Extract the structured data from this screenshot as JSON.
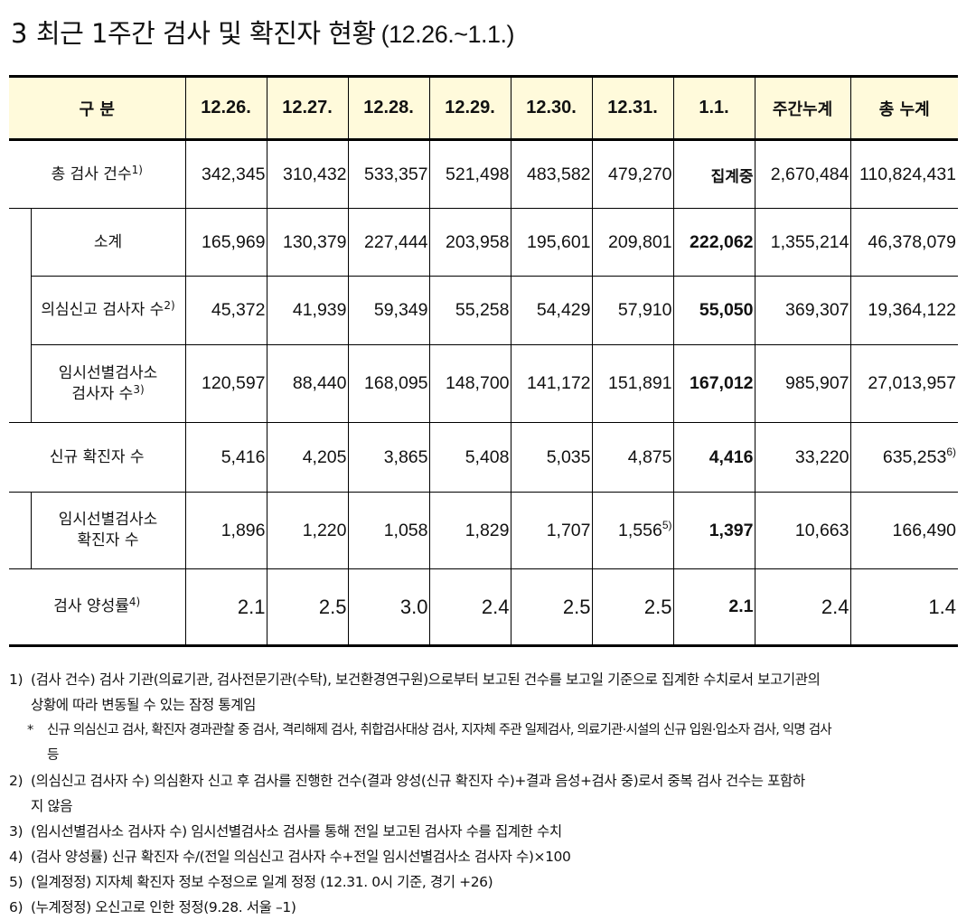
{
  "title": {
    "number": "3",
    "text": "최근 1주간 검사 및 확진자 현황",
    "period": "(12.26.~1.1.)"
  },
  "table": {
    "header": {
      "label": "구 분",
      "dates": [
        "12.26.",
        "12.27.",
        "12.28.",
        "12.29.",
        "12.30.",
        "12.31.",
        "1.1."
      ],
      "weekly_total": "주간누계",
      "grand_total": "총 누계"
    },
    "rows": [
      {
        "label": "총 검사 건수",
        "sup": "1)",
        "values": [
          "342,345",
          "310,432",
          "533,357",
          "521,498",
          "483,582",
          "479,270"
        ],
        "latest": "집계중",
        "weekly": "2,670,484",
        "total": "110,824,431"
      },
      {
        "label": "소계",
        "values": [
          "165,969",
          "130,379",
          "227,444",
          "203,958",
          "195,601",
          "209,801"
        ],
        "latest": "222,062",
        "weekly": "1,355,214",
        "total": "46,378,079"
      },
      {
        "label": "의심신고 검사자 수",
        "sup": "2)",
        "values": [
          "45,372",
          "41,939",
          "59,349",
          "55,258",
          "54,429",
          "57,910"
        ],
        "latest": "55,050",
        "weekly": "369,307",
        "total": "19,364,122"
      },
      {
        "label_line1": "임시선별검사소",
        "label_line2": "검사자 수",
        "sup": "3)",
        "values": [
          "120,597",
          "88,440",
          "168,095",
          "148,700",
          "141,172",
          "151,891"
        ],
        "latest": "167,012",
        "weekly": "985,907",
        "total": "27,013,957"
      },
      {
        "label": "신규 확진자 수",
        "values": [
          "5,416",
          "4,205",
          "3,865",
          "5,408",
          "5,035",
          "4,875"
        ],
        "latest": "4,416",
        "weekly": "33,220",
        "total": "635,253",
        "total_sup": "6)"
      },
      {
        "label_line1": "임시선별검사소",
        "label_line2": "확진자 수",
        "values": [
          "1,896",
          "1,220",
          "1,058",
          "1,829",
          "1,707",
          "1,556"
        ],
        "value6_sup": "5)",
        "latest": "1,397",
        "weekly": "10,663",
        "total": "166,490"
      },
      {
        "label": "검사 양성률",
        "sup": "4)",
        "values": [
          "2.1",
          "2.5",
          "3.0",
          "2.4",
          "2.5",
          "2.5"
        ],
        "latest": "2.1",
        "weekly": "2.4",
        "total": "1.4"
      }
    ]
  },
  "notes": [
    {
      "no": "1)",
      "text": "(검사 건수) 검사 기관(의료기관, 검사전문기관(수탁), 보건환경연구원)으로부터 보고된 건수를 보고일 기준으로 집계한 수치로서 보고기관의",
      "cont": "상황에 따라 변동될 수 있는 잠정 통계임"
    },
    {
      "no": "*",
      "text": "신규 의심신고 검사, 확진자 경과관찰 중 검사, 격리해제 검사, 취합검사대상 검사, 지자체 주관 일제검사, 의료기관·시설의 신규 입원·입소자 검사, 익명 검사",
      "cont": "등"
    },
    {
      "no": "2)",
      "text": "(의심신고 검사자 수) 의심환자 신고 후 검사를 진행한 건수(결과 양성(신규 확진자 수)+결과 음성+검사 중)로서 중복 검사 건수는 포함하",
      "cont": "지 않음"
    },
    {
      "no": "3)",
      "text": "(임시선별검사소 검사자 수) 임시선별검사소 검사를 통해 전일 보고된 검사자 수를 집계한 수치"
    },
    {
      "no": "4)",
      "text": "(검사 양성률) 신규 확진자 수/(전일 의심신고 검사자 수+전일 임시선별검사소 검사자 수)×100"
    },
    {
      "no": "5)",
      "text": "(일계정정) 지자체 확진자 정보 수정으로 일계 정정 (12.31. 0시 기준, 경기 +26)"
    },
    {
      "no": "6)",
      "text": "(누계정정) 오신고로 인한 정정(9.28. 서울 –1)"
    }
  ]
}
